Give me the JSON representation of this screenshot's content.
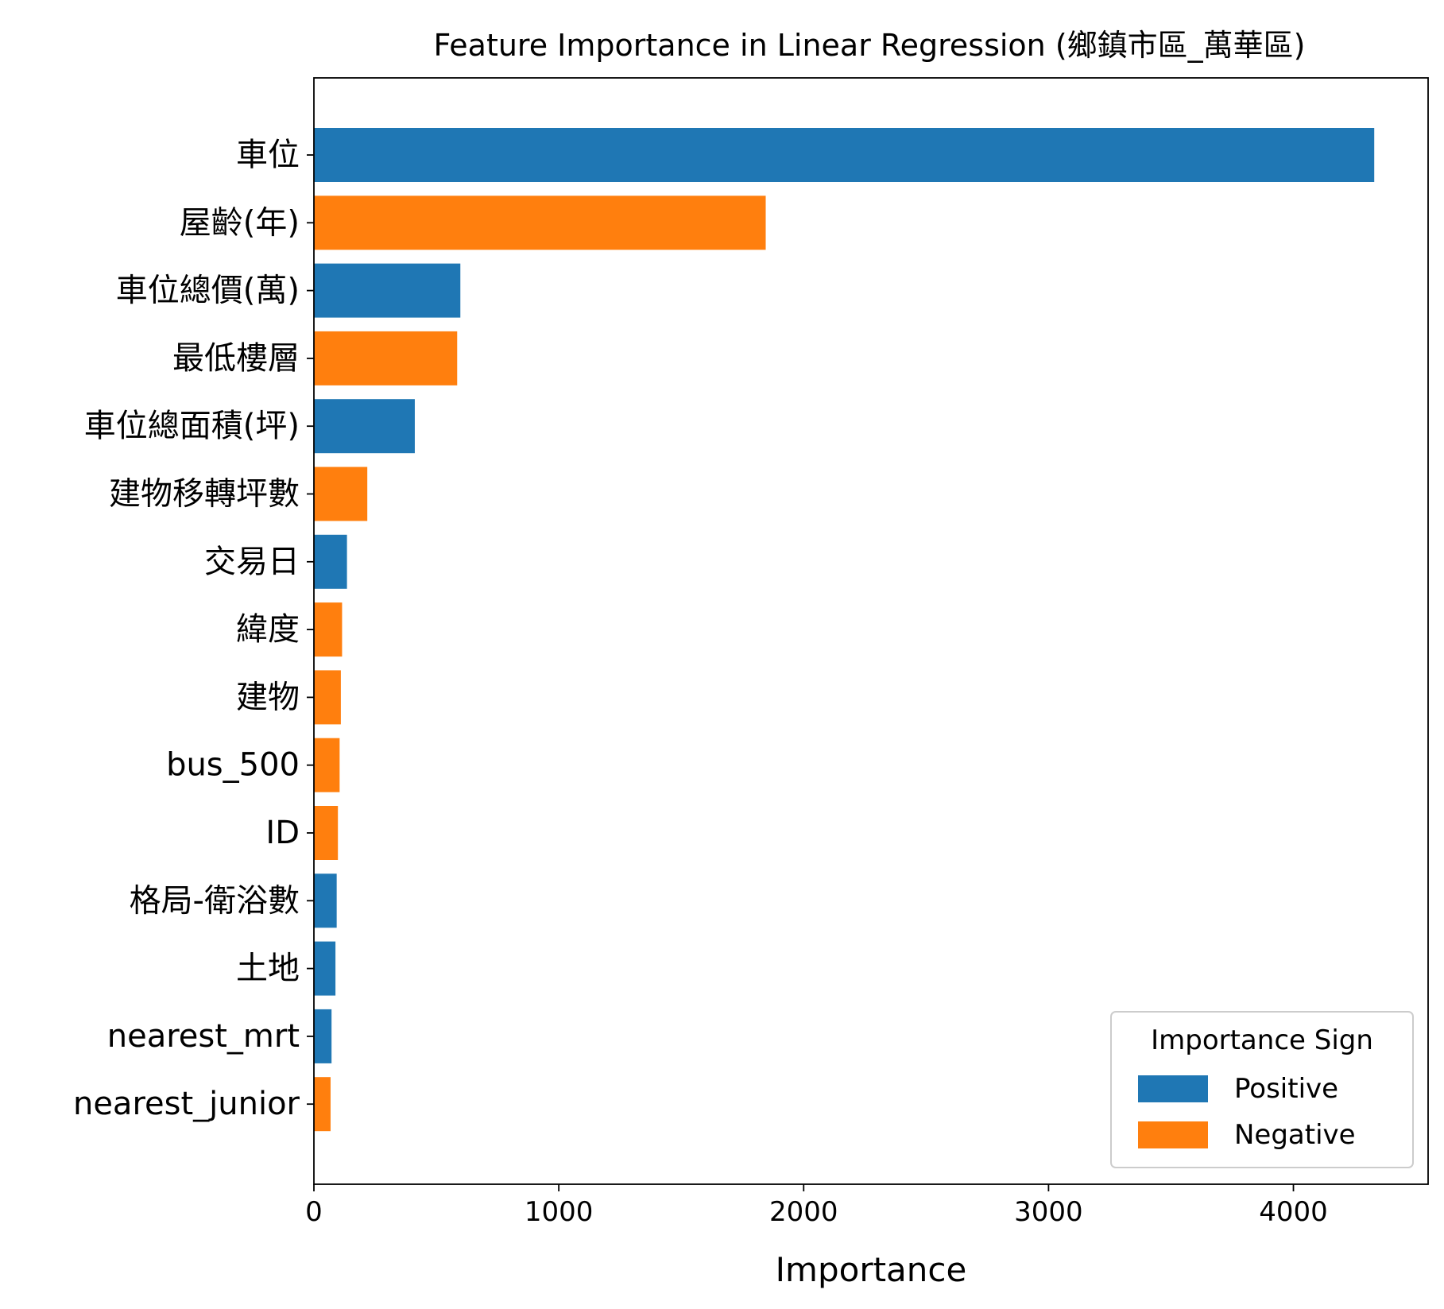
{
  "chart_data": {
    "type": "bar",
    "orientation": "horizontal",
    "title": "Feature Importance in Linear Regression (鄉鎮市區_萬華區)",
    "xlabel": "Importance",
    "ylabel": "",
    "xlim": [
      0,
      4550
    ],
    "xticks": [
      0,
      1000,
      2000,
      3000,
      4000
    ],
    "xtick_labels": [
      "0",
      "1000",
      "2000",
      "3000",
      "4000"
    ],
    "grid": false,
    "categories": [
      "車位",
      "屋齡(年)",
      "車位總價(萬)",
      "最低樓層",
      "車位總面積(坪)",
      "建物移轉坪數",
      "交易日",
      "緯度",
      "建物",
      "bus_500",
      "ID",
      "格局-衛浴數",
      "土地",
      "nearest_mrt",
      "nearest_junior"
    ],
    "values": [
      4330,
      1845,
      598,
      585,
      412,
      218,
      135,
      115,
      110,
      105,
      98,
      93,
      88,
      72,
      68
    ],
    "signs": [
      "Positive",
      "Negative",
      "Positive",
      "Negative",
      "Positive",
      "Negative",
      "Positive",
      "Negative",
      "Negative",
      "Negative",
      "Negative",
      "Positive",
      "Positive",
      "Positive",
      "Negative"
    ],
    "legend": {
      "title": "Importance Sign",
      "placement": "lower-right",
      "entries": [
        {
          "label": "Positive",
          "color": "#1f77b4"
        },
        {
          "label": "Negative",
          "color": "#ff7f0e"
        }
      ]
    },
    "colors": {
      "Positive": "#1f77b4",
      "Negative": "#ff7f0e"
    }
  }
}
